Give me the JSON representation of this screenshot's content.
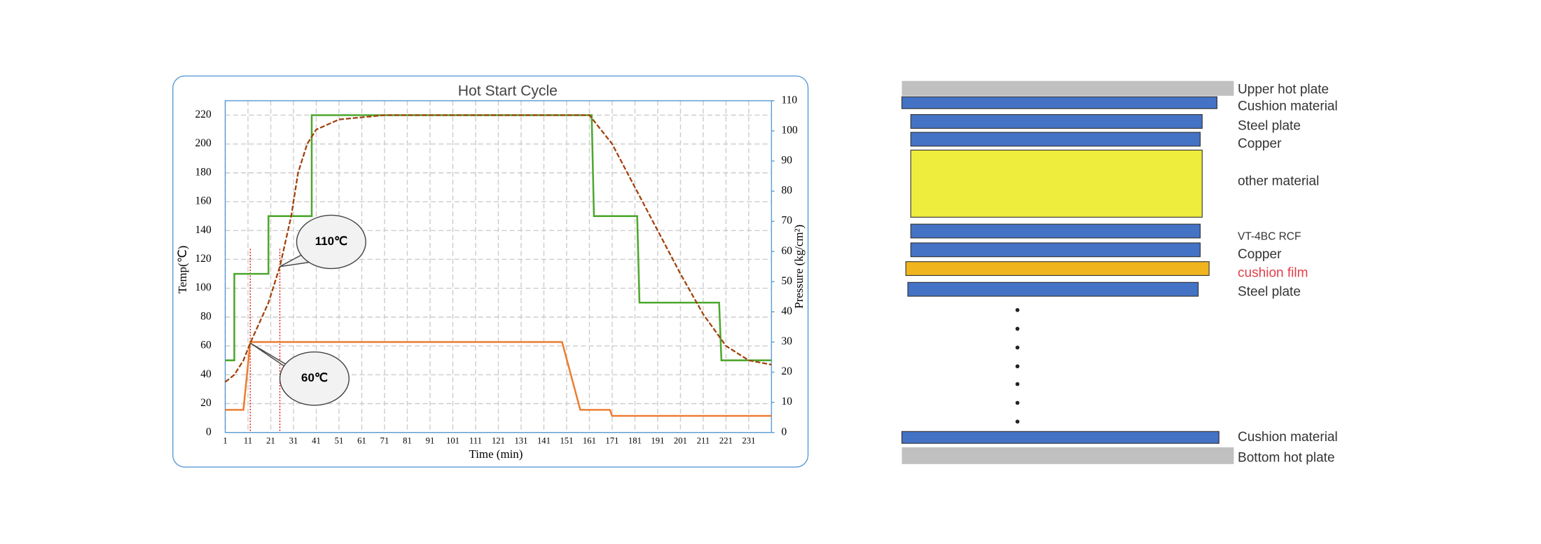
{
  "chart_data": {
    "type": "line",
    "title": "Hot Start Cycle",
    "x_label": "Time (min)",
    "y_label": "Temp(℃)",
    "y2_label": "Pressure (kg/cm²)",
    "xlim": [
      1,
      241
    ],
    "xticks": [
      1,
      11,
      21,
      31,
      41,
      51,
      61,
      71,
      81,
      91,
      101,
      111,
      121,
      131,
      141,
      151,
      161,
      171,
      181,
      191,
      201,
      211,
      221,
      231
    ],
    "ylim": [
      0,
      230
    ],
    "yticks": [
      0,
      20,
      40,
      60,
      80,
      100,
      120,
      140,
      160,
      180,
      200,
      220
    ],
    "y2lim": [
      0,
      110
    ],
    "y2ticks": [
      0,
      10,
      20,
      30,
      40,
      50,
      60,
      70,
      80,
      90,
      100,
      110
    ],
    "grid": true,
    "series": [
      {
        "color": "#4ea72e",
        "x": [
          1,
          5,
          5,
          20,
          20,
          39,
          39,
          162,
          163,
          182,
          183,
          218,
          219,
          241
        ],
        "values": [
          50,
          50,
          110,
          110,
          150,
          150,
          220,
          220,
          150,
          150,
          90,
          90,
          50,
          50
        ]
      },
      {
        "color": "#ed7d31",
        "axis": "y2",
        "x": [
          1,
          9,
          12,
          149,
          157,
          170,
          171,
          241
        ],
        "values": [
          7.5,
          7.5,
          30,
          30,
          7.5,
          7.5,
          5.5,
          5.5
        ]
      },
      {
        "color": "#a0400a",
        "dashed": true,
        "x": [
          1,
          5,
          9,
          12,
          20,
          25,
          30,
          33,
          37,
          41,
          51,
          71,
          161,
          171,
          181,
          191,
          201,
          211,
          221,
          231,
          241
        ],
        "values": [
          35,
          40,
          50,
          62,
          90,
          115,
          150,
          180,
          200,
          210,
          217,
          220,
          220,
          200,
          170,
          140,
          110,
          82,
          60,
          50,
          47
        ]
      }
    ],
    "vlines": [
      12,
      25
    ],
    "annotations": [
      {
        "text": "110℃",
        "x": 25,
        "y": 115
      },
      {
        "text": "60℃",
        "x": 12,
        "y": 62
      }
    ]
  },
  "diagram": {
    "layers": [
      {
        "label": "Upper hot plate",
        "color": "#c0c0c0"
      },
      {
        "label": "Cushion material",
        "color": "#4472c4"
      },
      {
        "label": "Steel plate",
        "color": "#4472c4"
      },
      {
        "label": "Copper",
        "color": "#4472c4"
      },
      {
        "label": "other material",
        "color": "#eeec3c"
      },
      {
        "label": "VT-4BC RCF",
        "color": "#4472c4"
      },
      {
        "label": "Copper",
        "color": "#4472c4"
      },
      {
        "label": "cushion film",
        "color": "#f0b51e",
        "label_color": "#e0404a"
      },
      {
        "label": "Steel plate",
        "color": "#4472c4"
      },
      {
        "label": "Cushion material",
        "color": "#4472c4"
      },
      {
        "label": "Bottom hot plate",
        "color": "#c0c0c0"
      }
    ]
  }
}
